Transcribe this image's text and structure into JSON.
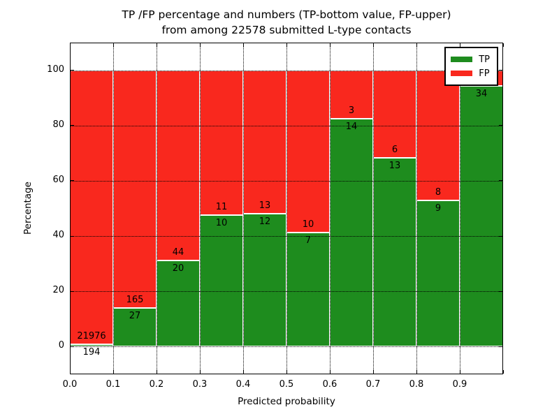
{
  "figure": {
    "title_line1": "TP /FP percentage and numbers (TP-bottom value, FP-upper)",
    "title_line2": "from among 22578 submitted L-type contacts",
    "background": "#ffffff"
  },
  "chart_data": {
    "type": "bar",
    "stacked": true,
    "units": "percent_of_bin",
    "title": "TP /FP percentage and numbers (TP-bottom value, FP-upper) from among 22578 submitted L-type contacts",
    "xlabel": "Predicted probability",
    "ylabel": "Percentage",
    "xlim": [
      0.0,
      1.0
    ],
    "ylim": [
      -10,
      110
    ],
    "x_ticks": [
      "0.0",
      "0.1",
      "0.2",
      "0.3",
      "0.4",
      "0.5",
      "0.6",
      "0.7",
      "0.8",
      "0.9"
    ],
    "y_ticks": [
      0,
      20,
      40,
      60,
      80,
      100
    ],
    "grid": "dotted black, horizontal and vertical, drawn over bars",
    "bar_edge_color": "#ffffff",
    "bin_width": 0.1,
    "categories": [
      "0.0-0.1",
      "0.1-0.2",
      "0.2-0.3",
      "0.3-0.4",
      "0.4-0.5",
      "0.5-0.6",
      "0.6-0.7",
      "0.7-0.8",
      "0.8-0.9",
      "0.9-1.0"
    ],
    "series": [
      {
        "name": "TP",
        "color": "#1e8c1e",
        "counts_labels": [
          "194",
          "27",
          "20",
          "10",
          "12",
          "7",
          "14",
          "13",
          "9",
          "34"
        ],
        "pct": [
          0.88,
          14.06,
          31.25,
          47.62,
          48.0,
          41.18,
          82.35,
          68.42,
          52.94,
          94.44
        ]
      },
      {
        "name": "FP",
        "color": "#f9281e",
        "counts_labels": [
          "21976",
          "165",
          "44",
          "11",
          "13",
          "10",
          "3",
          "6",
          "8",
          ""
        ],
        "pct": [
          99.12,
          85.94,
          68.75,
          52.38,
          52.0,
          58.82,
          17.65,
          31.58,
          47.06,
          5.56
        ]
      }
    ],
    "legend": {
      "position": "upper right",
      "entries": [
        {
          "label": "TP",
          "color": "#1e8c1e"
        },
        {
          "label": "FP",
          "color": "#f9281e"
        }
      ]
    }
  }
}
